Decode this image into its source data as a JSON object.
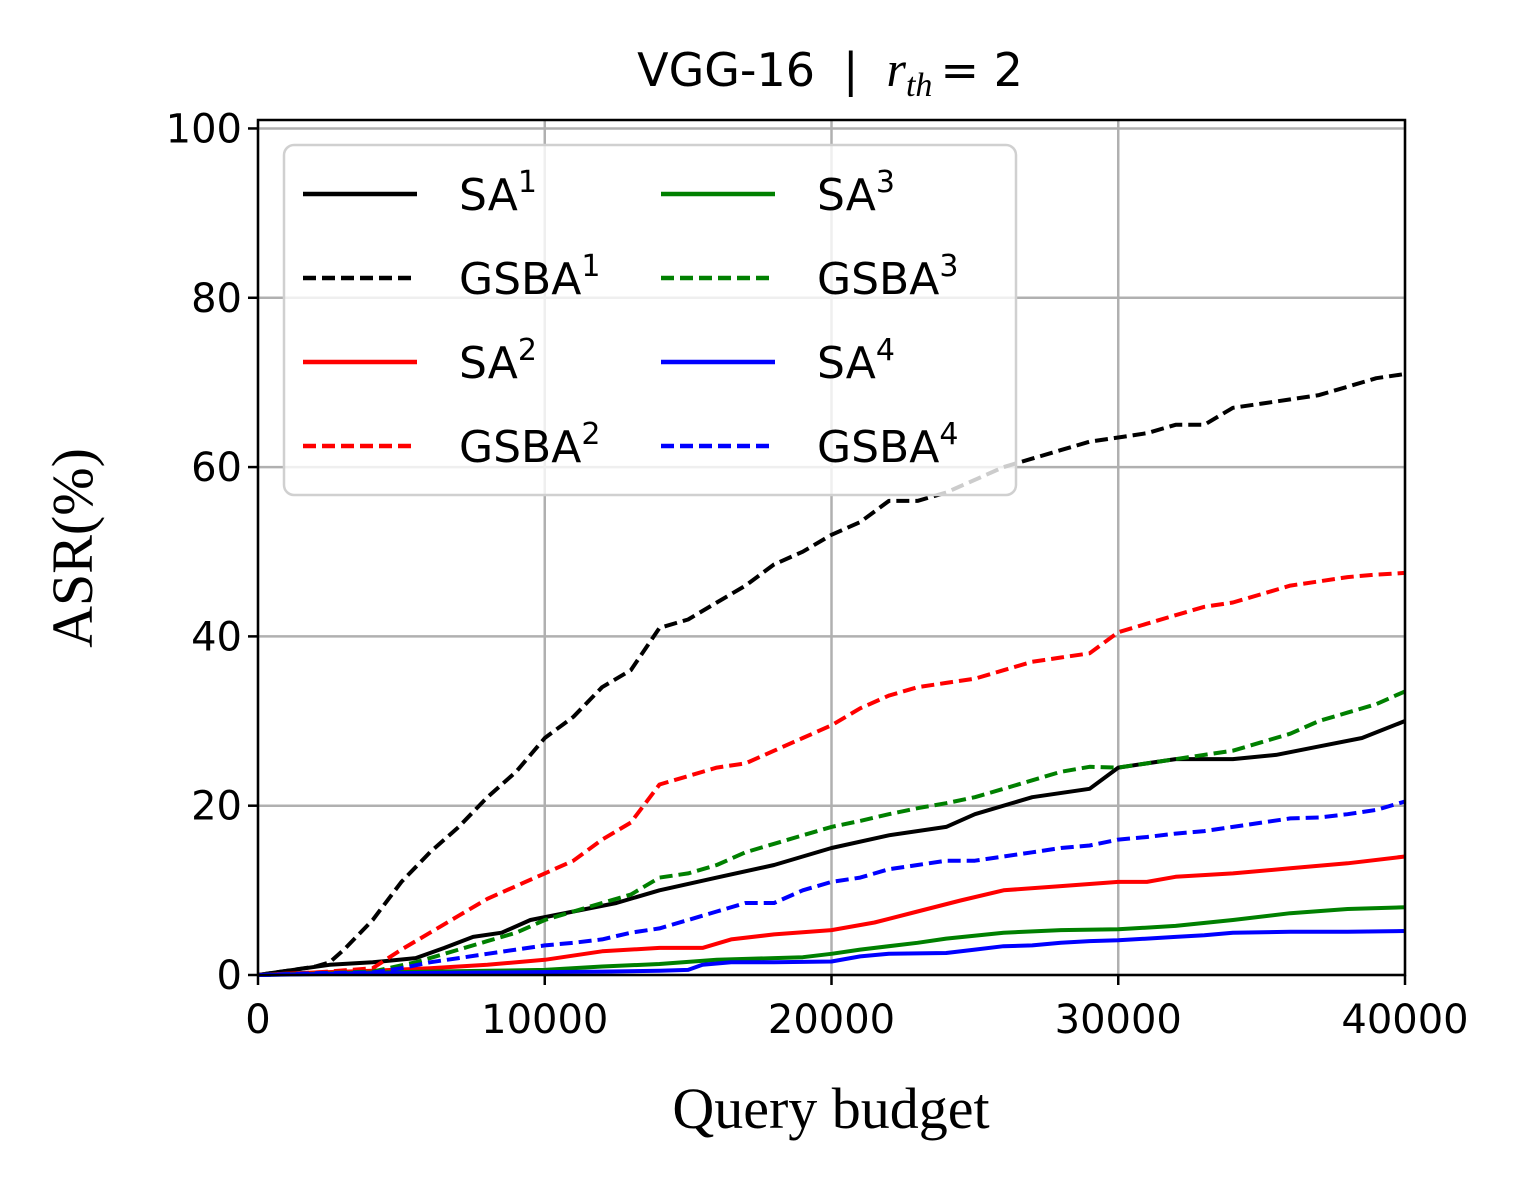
{
  "chart_data": {
    "type": "line",
    "title": {
      "model": "VGG-16",
      "separator": "|",
      "param_symbol": "r",
      "param_subscript": "th",
      "param_equals": "= 2"
    },
    "xlabel": "Query budget",
    "ylabel": "ASR(%)",
    "xlim": [
      0,
      40000
    ],
    "ylim": [
      0,
      101
    ],
    "xticks": [
      0,
      10000,
      20000,
      30000,
      40000
    ],
    "yticks": [
      0,
      20,
      40,
      60,
      80,
      100
    ],
    "xtick_labels": [
      "0",
      "10000",
      "20000",
      "30000",
      "40000"
    ],
    "ytick_labels": [
      "0",
      "20",
      "40",
      "60",
      "80",
      "100"
    ],
    "grid": true,
    "legend": {
      "position": "top-left",
      "columns": 2
    },
    "series": [
      {
        "name": "SA",
        "sup": "1",
        "color": "#000000",
        "style": "solid",
        "points": [
          [
            0,
            0
          ],
          [
            1000,
            0.5
          ],
          [
            2500,
            1.2
          ],
          [
            4000,
            1.5
          ],
          [
            5500,
            2
          ],
          [
            6500,
            3.2
          ],
          [
            7500,
            4.5
          ],
          [
            8500,
            5
          ],
          [
            9500,
            6.5
          ],
          [
            11000,
            7.5
          ],
          [
            12500,
            8.5
          ],
          [
            14000,
            10
          ],
          [
            16000,
            11.5
          ],
          [
            18000,
            13
          ],
          [
            20000,
            15
          ],
          [
            22000,
            16.5
          ],
          [
            24000,
            17.5
          ],
          [
            25000,
            19
          ],
          [
            27000,
            21
          ],
          [
            29000,
            22
          ],
          [
            30000,
            24.5
          ],
          [
            32000,
            25.5
          ],
          [
            34000,
            25.5
          ],
          [
            35500,
            26
          ],
          [
            37000,
            27
          ],
          [
            38500,
            28
          ],
          [
            40000,
            30
          ]
        ]
      },
      {
        "name": "GSBA",
        "sup": "1",
        "color": "#000000",
        "style": "dashed",
        "points": [
          [
            0,
            0
          ],
          [
            1000,
            0.5
          ],
          [
            2000,
            1
          ],
          [
            2500,
            1.5
          ],
          [
            3000,
            3
          ],
          [
            4000,
            6.5
          ],
          [
            5000,
            11
          ],
          [
            6000,
            14.5
          ],
          [
            7000,
            17.5
          ],
          [
            8000,
            21
          ],
          [
            9000,
            24
          ],
          [
            10000,
            28
          ],
          [
            11000,
            30.5
          ],
          [
            12000,
            34
          ],
          [
            13000,
            36
          ],
          [
            14000,
            41
          ],
          [
            15000,
            42
          ],
          [
            16000,
            44
          ],
          [
            17000,
            46
          ],
          [
            18000,
            48.5
          ],
          [
            19000,
            50
          ],
          [
            20000,
            52
          ],
          [
            21000,
            53.5
          ],
          [
            22000,
            56
          ],
          [
            23000,
            56
          ],
          [
            24000,
            57
          ],
          [
            25000,
            58.5
          ],
          [
            26000,
            60
          ],
          [
            27000,
            61
          ],
          [
            28000,
            62
          ],
          [
            29000,
            63
          ],
          [
            30000,
            63.5
          ],
          [
            31000,
            64
          ],
          [
            32000,
            65
          ],
          [
            33000,
            65
          ],
          [
            34000,
            67
          ],
          [
            35000,
            67.5
          ],
          [
            36000,
            68
          ],
          [
            37000,
            68.5
          ],
          [
            38000,
            69.5
          ],
          [
            39000,
            70.5
          ],
          [
            40000,
            71
          ]
        ]
      },
      {
        "name": "SA",
        "sup": "2",
        "color": "#ff0000",
        "style": "solid",
        "points": [
          [
            0,
            0
          ],
          [
            2000,
            0.3
          ],
          [
            4000,
            0.5
          ],
          [
            6000,
            0.8
          ],
          [
            8000,
            1.2
          ],
          [
            10000,
            1.8
          ],
          [
            12000,
            2.8
          ],
          [
            14000,
            3.2
          ],
          [
            15500,
            3.2
          ],
          [
            16500,
            4.2
          ],
          [
            18000,
            4.8
          ],
          [
            20000,
            5.3
          ],
          [
            21500,
            6.2
          ],
          [
            23000,
            7.5
          ],
          [
            24500,
            8.8
          ],
          [
            26000,
            10
          ],
          [
            28000,
            10.5
          ],
          [
            30000,
            11
          ],
          [
            31000,
            11
          ],
          [
            32000,
            11.6
          ],
          [
            34000,
            12
          ],
          [
            36000,
            12.6
          ],
          [
            38000,
            13.2
          ],
          [
            40000,
            14
          ]
        ]
      },
      {
        "name": "GSBA",
        "sup": "2",
        "color": "#ff0000",
        "style": "dashed",
        "points": [
          [
            0,
            0
          ],
          [
            2000,
            0.3
          ],
          [
            4000,
            0.8
          ],
          [
            5000,
            3
          ],
          [
            6000,
            5
          ],
          [
            7000,
            7
          ],
          [
            8000,
            9
          ],
          [
            9000,
            10.5
          ],
          [
            10000,
            12
          ],
          [
            11000,
            13.5
          ],
          [
            12000,
            16
          ],
          [
            13000,
            18
          ],
          [
            14000,
            22.5
          ],
          [
            15000,
            23.5
          ],
          [
            16000,
            24.5
          ],
          [
            17000,
            25
          ],
          [
            18000,
            26.5
          ],
          [
            19000,
            28
          ],
          [
            20000,
            29.5
          ],
          [
            21000,
            31.5
          ],
          [
            22000,
            33
          ],
          [
            23000,
            34
          ],
          [
            24000,
            34.5
          ],
          [
            25000,
            35
          ],
          [
            26000,
            36
          ],
          [
            27000,
            37
          ],
          [
            28000,
            37.5
          ],
          [
            29000,
            38
          ],
          [
            30000,
            40.5
          ],
          [
            31000,
            41.5
          ],
          [
            32000,
            42.5
          ],
          [
            33000,
            43.5
          ],
          [
            34000,
            44
          ],
          [
            35000,
            45
          ],
          [
            36000,
            46
          ],
          [
            37000,
            46.5
          ],
          [
            38000,
            47
          ],
          [
            39000,
            47.3
          ],
          [
            40000,
            47.5
          ]
        ]
      },
      {
        "name": "SA",
        "sup": "3",
        "color": "#008000",
        "style": "solid",
        "points": [
          [
            0,
            0
          ],
          [
            4000,
            0.3
          ],
          [
            8000,
            0.5
          ],
          [
            10000,
            0.6
          ],
          [
            12000,
            1
          ],
          [
            14000,
            1.3
          ],
          [
            16000,
            1.8
          ],
          [
            18000,
            2
          ],
          [
            19000,
            2.1
          ],
          [
            20000,
            2.5
          ],
          [
            21000,
            3
          ],
          [
            23000,
            3.8
          ],
          [
            24000,
            4.3
          ],
          [
            26000,
            5
          ],
          [
            28000,
            5.3
          ],
          [
            30000,
            5.4
          ],
          [
            32000,
            5.8
          ],
          [
            34000,
            6.5
          ],
          [
            36000,
            7.3
          ],
          [
            38000,
            7.8
          ],
          [
            40000,
            8
          ]
        ]
      },
      {
        "name": "GSBA",
        "sup": "3",
        "color": "#008000",
        "style": "dashed",
        "points": [
          [
            0,
            0
          ],
          [
            2000,
            0.2
          ],
          [
            4000,
            0.4
          ],
          [
            5500,
            1.5
          ],
          [
            7000,
            3
          ],
          [
            8000,
            4
          ],
          [
            9000,
            5
          ],
          [
            10000,
            6.5
          ],
          [
            11000,
            7.5
          ],
          [
            12000,
            8.5
          ],
          [
            13000,
            9.5
          ],
          [
            14000,
            11.5
          ],
          [
            15000,
            12
          ],
          [
            16000,
            13
          ],
          [
            17000,
            14.5
          ],
          [
            18000,
            15.5
          ],
          [
            19000,
            16.5
          ],
          [
            20000,
            17.5
          ],
          [
            21000,
            18.2
          ],
          [
            22000,
            19
          ],
          [
            23000,
            19.7
          ],
          [
            24000,
            20.3
          ],
          [
            25000,
            21
          ],
          [
            26000,
            22
          ],
          [
            27000,
            23
          ],
          [
            28000,
            24
          ],
          [
            29000,
            24.6
          ],
          [
            30000,
            24.5
          ],
          [
            31000,
            25
          ],
          [
            32000,
            25.5
          ],
          [
            33000,
            26
          ],
          [
            34000,
            26.5
          ],
          [
            35000,
            27.5
          ],
          [
            36000,
            28.5
          ],
          [
            37000,
            30
          ],
          [
            38000,
            31
          ],
          [
            39000,
            32
          ],
          [
            40000,
            33.5
          ]
        ]
      },
      {
        "name": "SA",
        "sup": "4",
        "color": "#0000ff",
        "style": "solid",
        "points": [
          [
            0,
            0
          ],
          [
            4000,
            0.2
          ],
          [
            8000,
            0.3
          ],
          [
            12000,
            0.4
          ],
          [
            14000,
            0.5
          ],
          [
            15000,
            0.6
          ],
          [
            15500,
            1.2
          ],
          [
            16500,
            1.5
          ],
          [
            18000,
            1.5
          ],
          [
            20000,
            1.6
          ],
          [
            21000,
            2.2
          ],
          [
            22000,
            2.5
          ],
          [
            24000,
            2.6
          ],
          [
            25000,
            3
          ],
          [
            26000,
            3.4
          ],
          [
            27000,
            3.5
          ],
          [
            28000,
            3.8
          ],
          [
            29000,
            4
          ],
          [
            30000,
            4.1
          ],
          [
            32000,
            4.5
          ],
          [
            33000,
            4.7
          ],
          [
            34000,
            5
          ],
          [
            36000,
            5.1
          ],
          [
            38000,
            5.1
          ],
          [
            40000,
            5.2
          ]
        ]
      },
      {
        "name": "GSBA",
        "sup": "4",
        "color": "#0000ff",
        "style": "dashed",
        "points": [
          [
            0,
            0
          ],
          [
            2000,
            0.2
          ],
          [
            4000,
            0.3
          ],
          [
            5000,
            0.8
          ],
          [
            6000,
            1.5
          ],
          [
            7000,
            2
          ],
          [
            8000,
            2.5
          ],
          [
            9000,
            3
          ],
          [
            10000,
            3.5
          ],
          [
            11000,
            3.8
          ],
          [
            12000,
            4.2
          ],
          [
            13000,
            5
          ],
          [
            14000,
            5.5
          ],
          [
            15000,
            6.5
          ],
          [
            16000,
            7.5
          ],
          [
            17000,
            8.5
          ],
          [
            18000,
            8.5
          ],
          [
            19000,
            10
          ],
          [
            20000,
            11
          ],
          [
            21000,
            11.5
          ],
          [
            22000,
            12.5
          ],
          [
            23000,
            13
          ],
          [
            24000,
            13.5
          ],
          [
            25000,
            13.5
          ],
          [
            26000,
            14
          ],
          [
            27000,
            14.5
          ],
          [
            28000,
            15
          ],
          [
            29000,
            15.3
          ],
          [
            30000,
            16
          ],
          [
            31000,
            16.3
          ],
          [
            32000,
            16.7
          ],
          [
            33000,
            17
          ],
          [
            34000,
            17.5
          ],
          [
            35000,
            18
          ],
          [
            36000,
            18.5
          ],
          [
            37000,
            18.6
          ],
          [
            38000,
            19
          ],
          [
            39000,
            19.5
          ],
          [
            40000,
            20.5
          ]
        ]
      }
    ]
  }
}
